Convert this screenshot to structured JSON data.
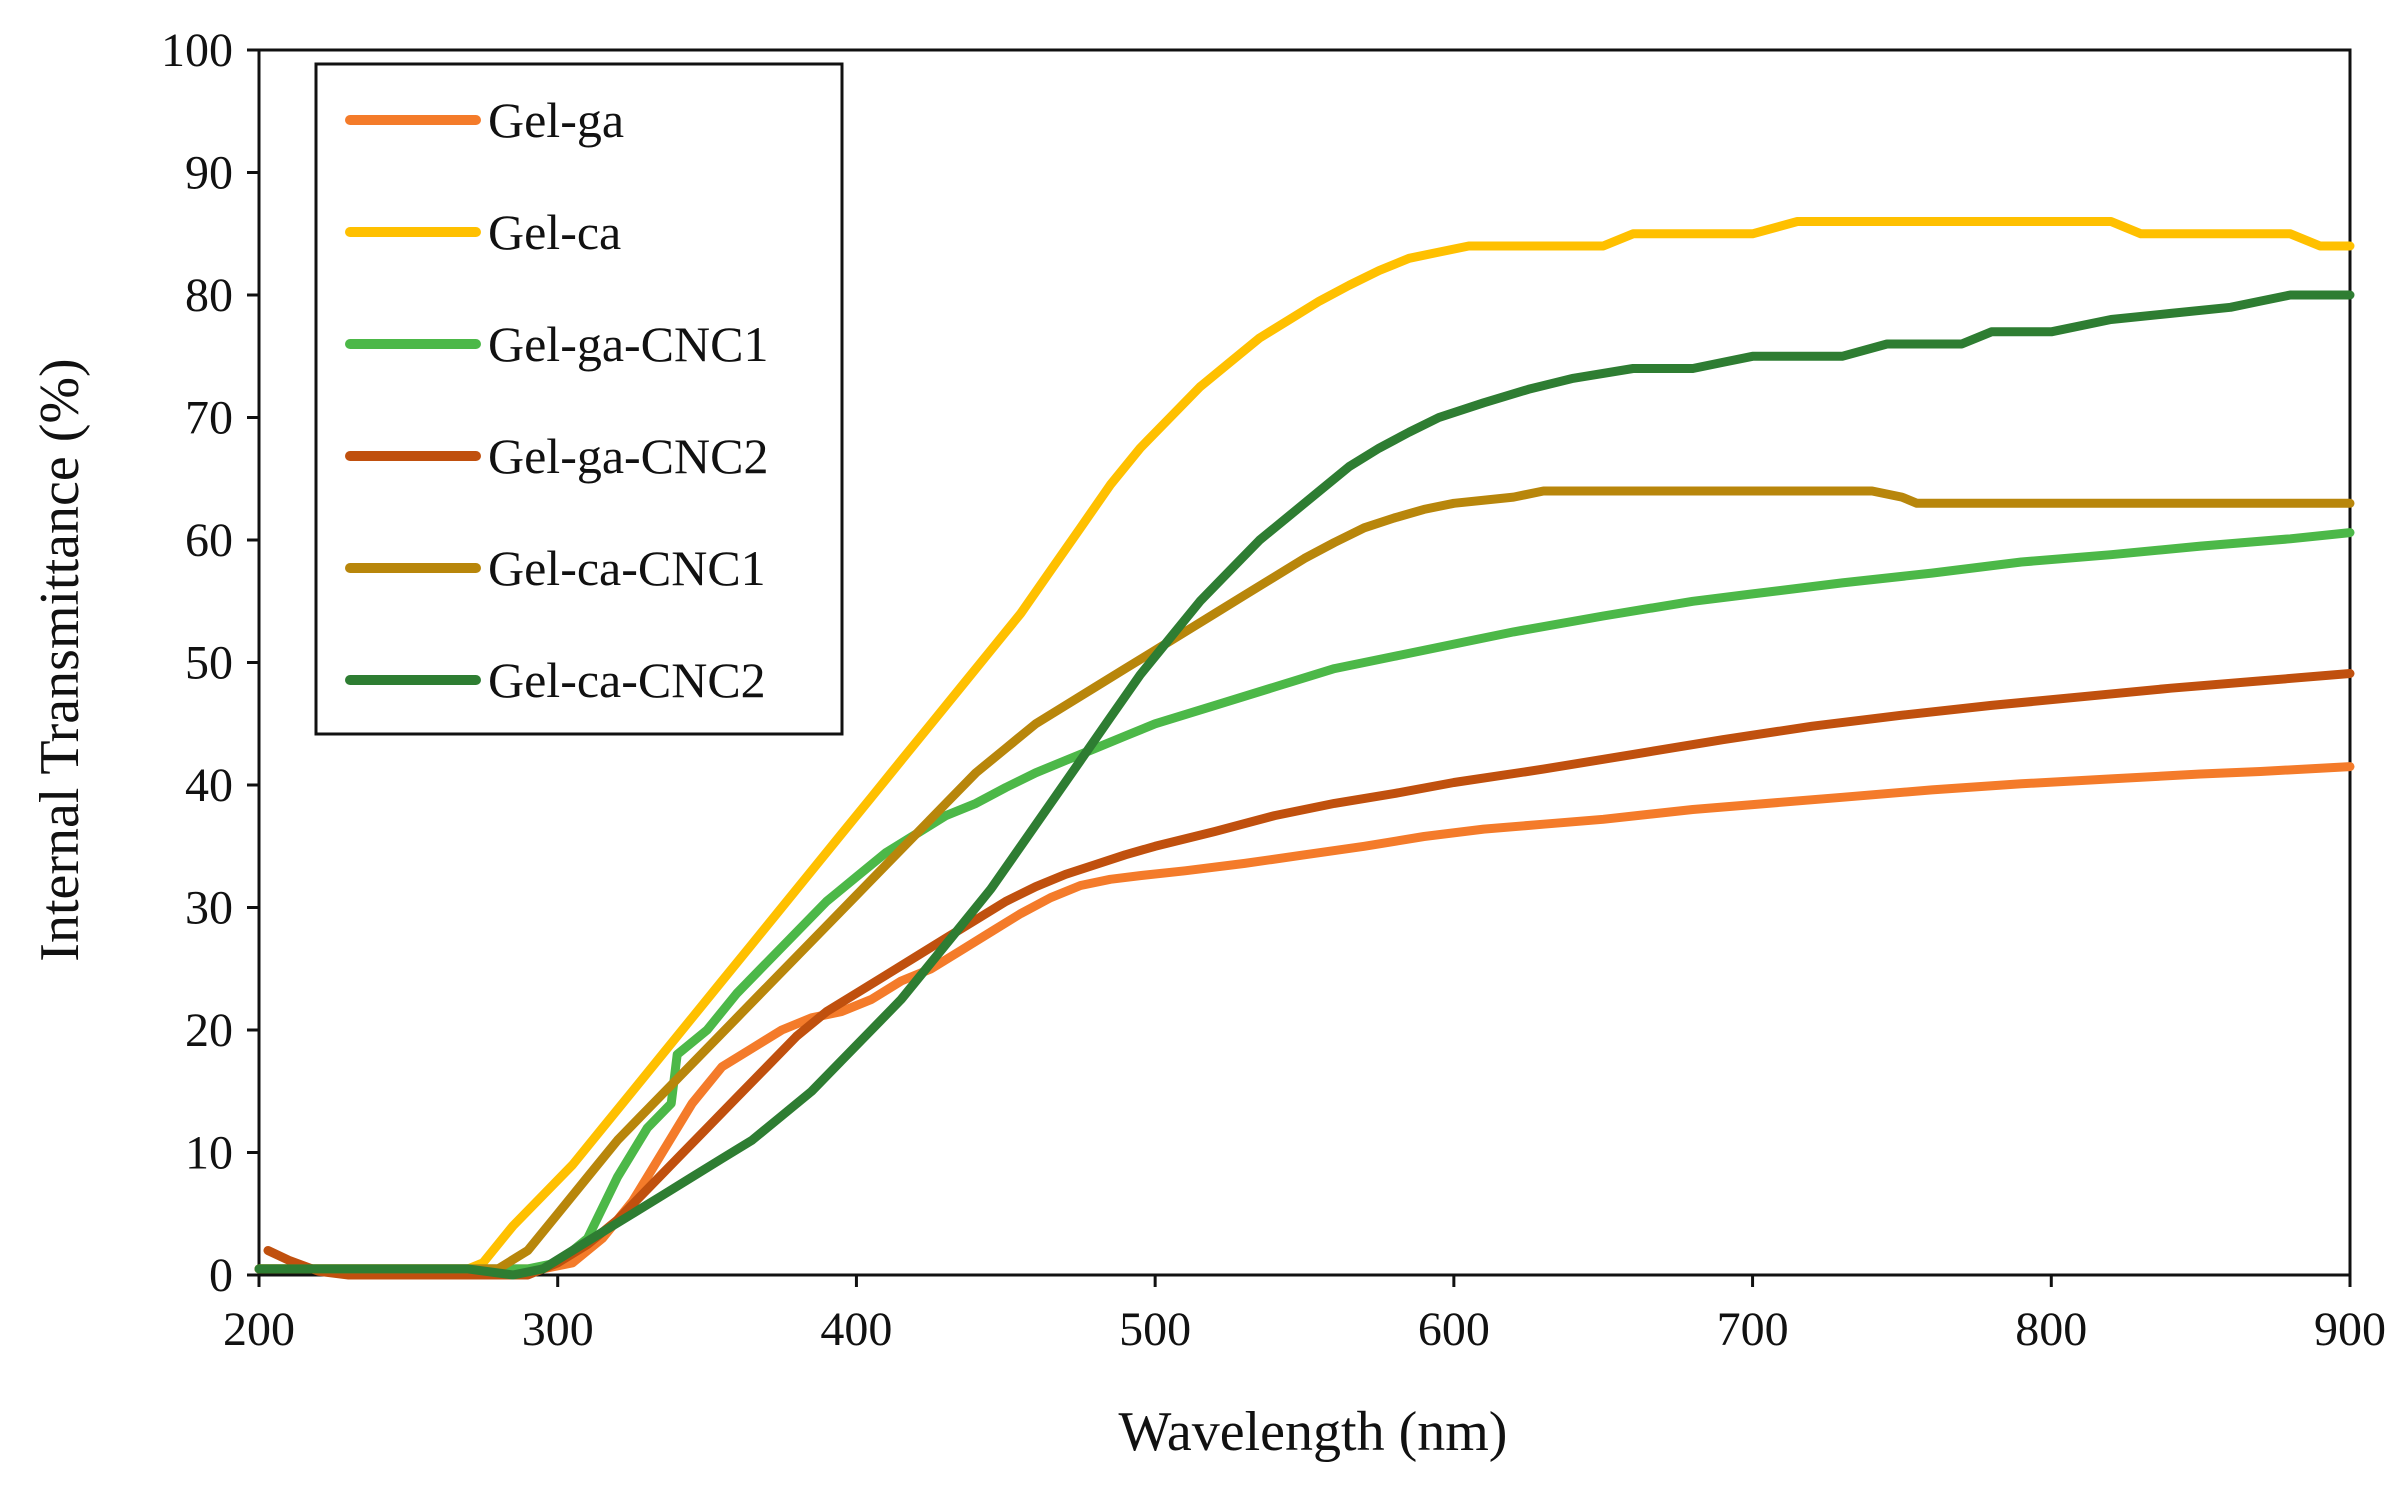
{
  "chart_data": {
    "type": "line",
    "title": "",
    "xlabel": "Wavelength (nm)",
    "ylabel": "Internal Transmittance (%)",
    "xlim": [
      200,
      900
    ],
    "ylim": [
      0,
      100
    ],
    "xticks": [
      200,
      300,
      400,
      500,
      600,
      700,
      800,
      900
    ],
    "yticks": [
      0,
      10,
      20,
      30,
      40,
      50,
      60,
      70,
      80,
      90,
      100
    ],
    "xtick_labels": [
      "200",
      "300",
      "400",
      "500",
      "600",
      "700",
      "800",
      "900"
    ],
    "ytick_labels": [
      "0",
      "10",
      "20",
      "30",
      "40",
      "50",
      "60",
      "70",
      "80",
      "90",
      "100"
    ],
    "grid": false,
    "legend_position": "top-left",
    "series": [
      {
        "name": "Gel-ga",
        "color": "#F47B2A",
        "points": [
          [
            200,
            0.5
          ],
          [
            270,
            0.5
          ],
          [
            295,
            0.5
          ],
          [
            305,
            1
          ],
          [
            315,
            3
          ],
          [
            325,
            6
          ],
          [
            335,
            10
          ],
          [
            345,
            14
          ],
          [
            355,
            17
          ],
          [
            365,
            18.5
          ],
          [
            375,
            20
          ],
          [
            385,
            21
          ],
          [
            395,
            21.5
          ],
          [
            405,
            22.5
          ],
          [
            415,
            24
          ],
          [
            425,
            25
          ],
          [
            435,
            26.5
          ],
          [
            445,
            28
          ],
          [
            455,
            29.5
          ],
          [
            465,
            30.8
          ],
          [
            475,
            31.8
          ],
          [
            485,
            32.3
          ],
          [
            495,
            32.6
          ],
          [
            510,
            33
          ],
          [
            530,
            33.6
          ],
          [
            550,
            34.3
          ],
          [
            570,
            35
          ],
          [
            590,
            35.8
          ],
          [
            610,
            36.4
          ],
          [
            630,
            36.8
          ],
          [
            650,
            37.2
          ],
          [
            680,
            38
          ],
          [
            700,
            38.4
          ],
          [
            730,
            39
          ],
          [
            760,
            39.6
          ],
          [
            790,
            40.1
          ],
          [
            820,
            40.5
          ],
          [
            850,
            40.9
          ],
          [
            870,
            41.1
          ],
          [
            900,
            41.5
          ]
        ]
      },
      {
        "name": "Gel-ca",
        "color": "#FFC000",
        "points": [
          [
            200,
            0.5
          ],
          [
            270,
            0.5
          ],
          [
            275,
            1
          ],
          [
            285,
            4
          ],
          [
            295,
            6.5
          ],
          [
            305,
            9
          ],
          [
            315,
            12
          ],
          [
            325,
            15
          ],
          [
            335,
            18
          ],
          [
            345,
            21
          ],
          [
            355,
            24
          ],
          [
            365,
            27
          ],
          [
            375,
            30
          ],
          [
            385,
            33
          ],
          [
            395,
            36
          ],
          [
            405,
            39
          ],
          [
            415,
            42
          ],
          [
            425,
            45
          ],
          [
            435,
            48
          ],
          [
            445,
            51
          ],
          [
            455,
            54
          ],
          [
            465,
            57.5
          ],
          [
            475,
            61
          ],
          [
            485,
            64.5
          ],
          [
            495,
            67.5
          ],
          [
            505,
            70
          ],
          [
            515,
            72.5
          ],
          [
            525,
            74.5
          ],
          [
            535,
            76.5
          ],
          [
            545,
            78
          ],
          [
            555,
            79.5
          ],
          [
            565,
            80.8
          ],
          [
            575,
            82
          ],
          [
            585,
            83
          ],
          [
            595,
            83.5
          ],
          [
            605,
            84
          ],
          [
            620,
            84
          ],
          [
            650,
            84
          ],
          [
            660,
            85
          ],
          [
            700,
            85
          ],
          [
            715,
            86
          ],
          [
            800,
            86
          ],
          [
            820,
            86
          ],
          [
            830,
            85
          ],
          [
            880,
            85
          ],
          [
            890,
            84
          ],
          [
            900,
            84
          ]
        ]
      },
      {
        "name": "Gel-ga-CNC1",
        "color": "#4CB848",
        "points": [
          [
            200,
            0.5
          ],
          [
            270,
            0.5
          ],
          [
            290,
            0.5
          ],
          [
            300,
            1
          ],
          [
            310,
            3
          ],
          [
            320,
            8
          ],
          [
            330,
            12
          ],
          [
            338,
            14
          ],
          [
            340,
            18
          ],
          [
            350,
            20
          ],
          [
            360,
            23
          ],
          [
            370,
            25.5
          ],
          [
            380,
            28
          ],
          [
            390,
            30.5
          ],
          [
            400,
            32.5
          ],
          [
            410,
            34.5
          ],
          [
            420,
            36
          ],
          [
            430,
            37.5
          ],
          [
            440,
            38.5
          ],
          [
            450,
            39.8
          ],
          [
            460,
            41
          ],
          [
            470,
            42
          ],
          [
            480,
            43
          ],
          [
            490,
            44
          ],
          [
            500,
            45
          ],
          [
            520,
            46.5
          ],
          [
            540,
            48
          ],
          [
            560,
            49.5
          ],
          [
            580,
            50.5
          ],
          [
            600,
            51.5
          ],
          [
            620,
            52.5
          ],
          [
            650,
            53.8
          ],
          [
            680,
            55
          ],
          [
            700,
            55.6
          ],
          [
            730,
            56.5
          ],
          [
            760,
            57.3
          ],
          [
            790,
            58.2
          ],
          [
            820,
            58.8
          ],
          [
            850,
            59.5
          ],
          [
            880,
            60.1
          ],
          [
            900,
            60.6
          ]
        ]
      },
      {
        "name": "Gel-ga-CNC2",
        "color": "#C0500E",
        "points": [
          [
            203,
            2
          ],
          [
            210,
            1.2
          ],
          [
            220,
            0.3
          ],
          [
            230,
            0
          ],
          [
            240,
            0
          ],
          [
            270,
            0
          ],
          [
            290,
            0
          ],
          [
            300,
            1
          ],
          [
            310,
            2.5
          ],
          [
            320,
            4.5
          ],
          [
            330,
            7
          ],
          [
            340,
            9.5
          ],
          [
            350,
            12
          ],
          [
            360,
            14.5
          ],
          [
            370,
            17
          ],
          [
            380,
            19.5
          ],
          [
            390,
            21.5
          ],
          [
            400,
            23
          ],
          [
            410,
            24.5
          ],
          [
            420,
            26
          ],
          [
            430,
            27.5
          ],
          [
            440,
            29
          ],
          [
            450,
            30.5
          ],
          [
            460,
            31.7
          ],
          [
            470,
            32.7
          ],
          [
            480,
            33.5
          ],
          [
            490,
            34.3
          ],
          [
            500,
            35
          ],
          [
            520,
            36.2
          ],
          [
            540,
            37.5
          ],
          [
            560,
            38.5
          ],
          [
            580,
            39.3
          ],
          [
            600,
            40.2
          ],
          [
            630,
            41.3
          ],
          [
            660,
            42.5
          ],
          [
            690,
            43.7
          ],
          [
            720,
            44.8
          ],
          [
            750,
            45.7
          ],
          [
            780,
            46.5
          ],
          [
            810,
            47.2
          ],
          [
            840,
            47.9
          ],
          [
            870,
            48.5
          ],
          [
            900,
            49.1
          ]
        ]
      },
      {
        "name": "Gel-ca-CNC1",
        "color": "#B8860B",
        "points": [
          [
            200,
            0.5
          ],
          [
            270,
            0.5
          ],
          [
            280,
            0.5
          ],
          [
            290,
            2
          ],
          [
            300,
            5
          ],
          [
            310,
            8
          ],
          [
            320,
            11
          ],
          [
            330,
            13.5
          ],
          [
            340,
            16
          ],
          [
            350,
            18.5
          ],
          [
            360,
            21
          ],
          [
            370,
            23.5
          ],
          [
            380,
            26
          ],
          [
            390,
            28.5
          ],
          [
            400,
            31
          ],
          [
            410,
            33.5
          ],
          [
            420,
            36
          ],
          [
            430,
            38.5
          ],
          [
            440,
            41
          ],
          [
            450,
            43
          ],
          [
            460,
            45
          ],
          [
            470,
            46.5
          ],
          [
            480,
            48
          ],
          [
            490,
            49.5
          ],
          [
            500,
            51
          ],
          [
            510,
            52.5
          ],
          [
            520,
            54
          ],
          [
            530,
            55.5
          ],
          [
            540,
            57
          ],
          [
            550,
            58.5
          ],
          [
            560,
            59.8
          ],
          [
            570,
            61
          ],
          [
            580,
            61.8
          ],
          [
            590,
            62.5
          ],
          [
            600,
            63
          ],
          [
            620,
            63.5
          ],
          [
            630,
            64
          ],
          [
            700,
            64
          ],
          [
            740,
            64
          ],
          [
            750,
            63.5
          ],
          [
            755,
            63
          ],
          [
            900,
            63
          ]
        ]
      },
      {
        "name": "Gel-ca-CNC2",
        "color": "#2E7D32",
        "points": [
          [
            200,
            0.5
          ],
          [
            270,
            0.5
          ],
          [
            285,
            0
          ],
          [
            295,
            0.5
          ],
          [
            305,
            2
          ],
          [
            315,
            3.5
          ],
          [
            325,
            5
          ],
          [
            335,
            6.5
          ],
          [
            345,
            8
          ],
          [
            355,
            9.5
          ],
          [
            365,
            11
          ],
          [
            375,
            13
          ],
          [
            385,
            15
          ],
          [
            395,
            17.5
          ],
          [
            405,
            20
          ],
          [
            415,
            22.5
          ],
          [
            425,
            25.5
          ],
          [
            435,
            28.5
          ],
          [
            445,
            31.5
          ],
          [
            455,
            35
          ],
          [
            465,
            38.5
          ],
          [
            475,
            42
          ],
          [
            485,
            45.5
          ],
          [
            495,
            49
          ],
          [
            505,
            52
          ],
          [
            515,
            55
          ],
          [
            525,
            57.5
          ],
          [
            535,
            60
          ],
          [
            545,
            62
          ],
          [
            555,
            64
          ],
          [
            565,
            66
          ],
          [
            575,
            67.5
          ],
          [
            585,
            68.8
          ],
          [
            595,
            70
          ],
          [
            610,
            71.2
          ],
          [
            625,
            72.3
          ],
          [
            640,
            73.2
          ],
          [
            660,
            74
          ],
          [
            680,
            74
          ],
          [
            690,
            74.5
          ],
          [
            700,
            75
          ],
          [
            730,
            75
          ],
          [
            745,
            76
          ],
          [
            770,
            76
          ],
          [
            780,
            77
          ],
          [
            800,
            77
          ],
          [
            820,
            78
          ],
          [
            840,
            78.5
          ],
          [
            860,
            79
          ],
          [
            870,
            79.5
          ],
          [
            880,
            80
          ],
          [
            900,
            80
          ]
        ]
      }
    ]
  }
}
